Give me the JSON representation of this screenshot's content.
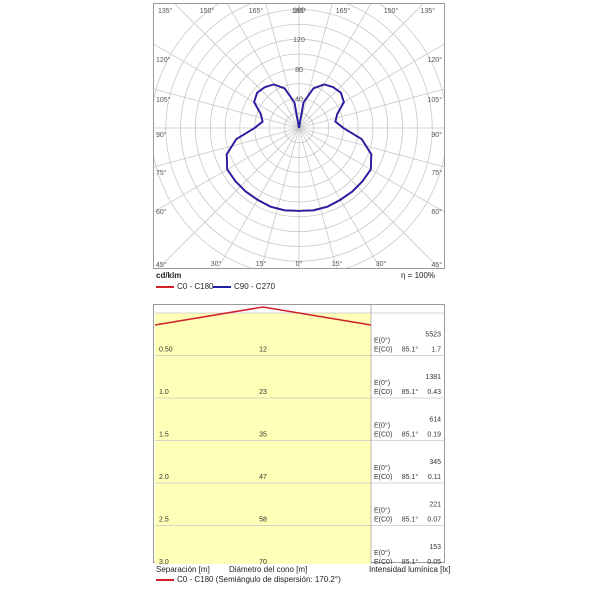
{
  "polar": {
    "unit": "cd/klm",
    "efficiency": "η = 100%",
    "legend": [
      {
        "label": "C0 - C180",
        "color": "#d11f2a"
      },
      {
        "label": "C90 - C270",
        "color": "#1f1fa8"
      }
    ],
    "top_angle_labels": [
      "135°",
      "150°",
      "165°",
      "180°",
      "165°",
      "150°",
      "135°"
    ],
    "left_angle_labels": [
      "120°",
      "105°",
      "90°",
      "75°",
      "60°",
      "45°"
    ],
    "right_angle_labels": [
      "120°",
      "105°",
      "90°",
      "75°",
      "60°",
      "45°"
    ],
    "bottom_angle_labels": [
      "30°",
      "15°",
      "0°",
      "15°",
      "30°"
    ],
    "radial_labels": [
      "160",
      "120",
      "80",
      "40"
    ]
  },
  "chart_data": {
    "type": "polar",
    "unit": "cd/klm",
    "r_range": [
      0,
      200
    ],
    "r_ticks": [
      40,
      80,
      120,
      160
    ],
    "angle_grid_step_deg": 15,
    "series": [
      {
        "name": "C90 - C270",
        "angles_deg": [
          0,
          10,
          20,
          30,
          40,
          50,
          60,
          70,
          80,
          90,
          100,
          110,
          120,
          130,
          140,
          150,
          160,
          170,
          180
        ],
        "values": [
          112,
          113,
          113,
          112,
          112,
          112,
          112,
          104,
          86,
          60,
          50,
          55,
          70,
          74,
          72,
          68,
          57,
          35,
          0
        ]
      },
      {
        "name": "C0 - C180",
        "angles_deg": [
          0,
          10,
          20,
          30,
          40,
          50,
          60,
          70,
          80,
          90,
          100,
          110,
          120,
          130,
          140,
          150,
          160,
          170,
          180
        ],
        "values": [
          112,
          113,
          113,
          112,
          112,
          112,
          112,
          104,
          86,
          60,
          50,
          55,
          70,
          74,
          72,
          68,
          57,
          35,
          0
        ]
      }
    ]
  },
  "cone": {
    "rows": [
      {
        "separation": "0.50",
        "diameter": "12",
        "e0": "5523",
        "ec0": "1.7",
        "angle": "85.1°"
      },
      {
        "separation": "1.0",
        "diameter": "23",
        "e0": "1381",
        "ec0": "0.43",
        "angle": "85.1°"
      },
      {
        "separation": "1.5",
        "diameter": "35",
        "e0": "614",
        "ec0": "0.19",
        "angle": "85.1°"
      },
      {
        "separation": "2.0",
        "diameter": "47",
        "e0": "345",
        "ec0": "0.11",
        "angle": "85.1°"
      },
      {
        "separation": "2.5",
        "diameter": "58",
        "e0": "221",
        "ec0": "0.07",
        "angle": "85.1°"
      },
      {
        "separation": "3.0",
        "diameter": "70",
        "e0": "153",
        "ec0": "0.05",
        "angle": "85.1°"
      }
    ],
    "e0_label": "E(0°)",
    "ec0_label": "E(C0)",
    "footer_separation": "Separación [m]",
    "footer_diameter": "Diámetro del cono [m]",
    "footer_intensity": "Intensidad lumínica [lx]",
    "footer_legend": "C0 - C180 (Semiángulo de dispersión: 170.2°)",
    "line_color": "#d11f2a",
    "fill_color": "#ffffb8"
  }
}
